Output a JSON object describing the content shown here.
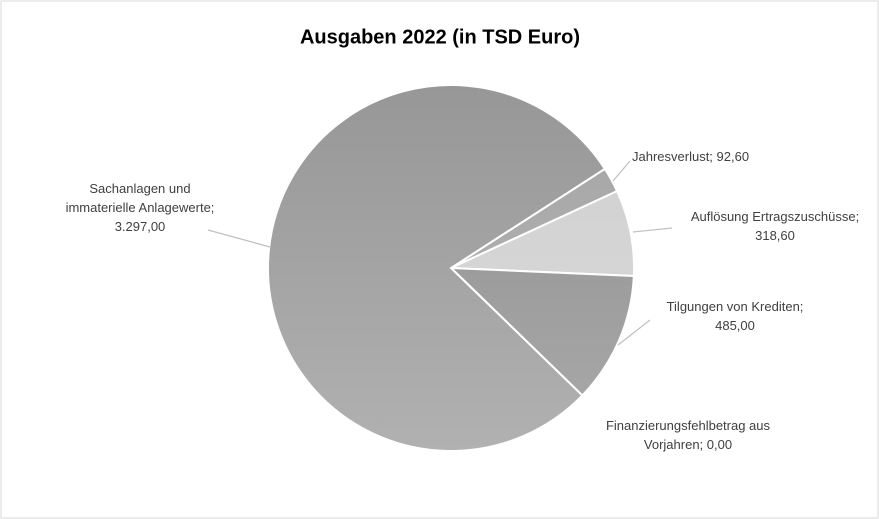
{
  "chart_data": {
    "type": "pie",
    "title": "Ausgaben 2022 (in TSD Euro)",
    "categories": [
      "Jahresverlust;",
      "Auflösung Ertragszuschüsse;",
      "Tilgungen von Krediten;",
      "Finanzierungsfehlbetrag aus Vorjahren;",
      "Sachanlagen und immaterielle Anlagewerte;"
    ],
    "values": [
      92.6,
      318.6,
      485.0,
      0.0,
      3297.0
    ],
    "value_labels": [
      "92,60",
      "318,60",
      "485,00",
      "0,00",
      "3.297,00"
    ],
    "colors": [
      "#a3a3a3",
      "#cfcfcf",
      "#8e8e8e",
      "#9a9a9a",
      "#979797"
    ]
  }
}
